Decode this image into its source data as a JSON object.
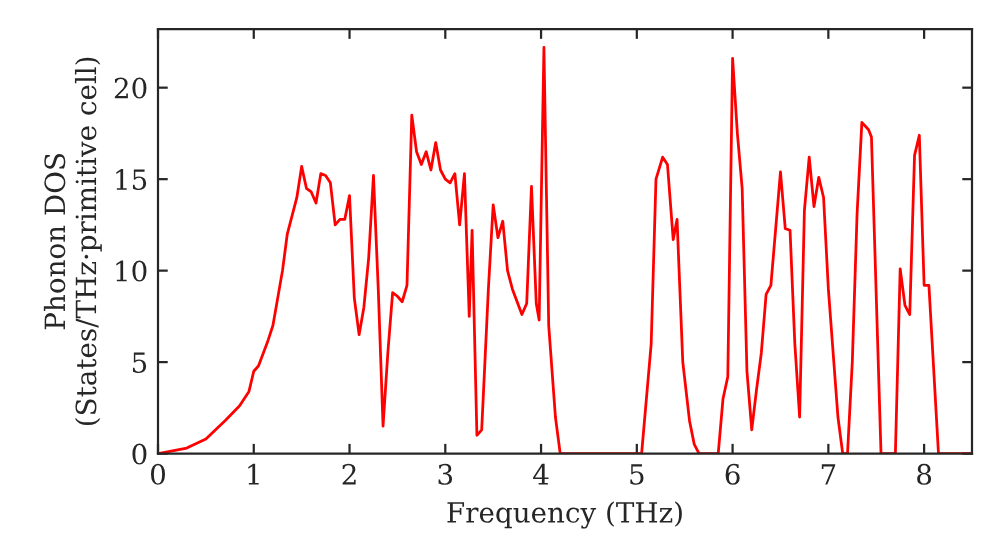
{
  "chart_data": {
    "type": "line",
    "xlabel": "Frequency (THz)",
    "ylabel": "Phonon DOS\n(States/THz·primitive cell)",
    "xlim": [
      0,
      8.5
    ],
    "ylim": [
      0,
      23.2
    ],
    "xticks": [
      0,
      1,
      2,
      3,
      4,
      5,
      6,
      7,
      8
    ],
    "yticks": [
      0,
      5,
      10,
      15,
      20
    ],
    "grid": false,
    "legend": false,
    "series": [
      {
        "color": "#ff0000",
        "x": [
          0,
          0.3,
          0.5,
          0.7,
          0.85,
          0.95,
          1.0,
          1.05,
          1.15,
          1.2,
          1.3,
          1.35,
          1.45,
          1.5,
          1.55,
          1.6,
          1.65,
          1.7,
          1.75,
          1.8,
          1.85,
          1.9,
          1.95,
          2.0,
          2.05,
          2.1,
          2.15,
          2.2,
          2.25,
          2.3,
          2.35,
          2.4,
          2.45,
          2.5,
          2.55,
          2.6,
          2.65,
          2.7,
          2.75,
          2.8,
          2.85,
          2.9,
          2.95,
          3.0,
          3.05,
          3.1,
          3.15,
          3.2,
          3.25,
          3.28,
          3.33,
          3.38,
          3.45,
          3.5,
          3.55,
          3.6,
          3.65,
          3.7,
          3.8,
          3.85,
          3.9,
          3.95,
          3.98,
          4.03,
          4.08,
          4.15,
          4.2,
          5.05,
          5.15,
          5.2,
          5.27,
          5.32,
          5.38,
          5.42,
          5.48,
          5.55,
          5.6,
          5.65,
          5.85,
          5.9,
          5.95,
          6.0,
          6.05,
          6.1,
          6.15,
          6.2,
          6.25,
          6.3,
          6.35,
          6.4,
          6.45,
          6.5,
          6.55,
          6.6,
          6.65,
          6.7,
          6.75,
          6.8,
          6.85,
          6.9,
          6.95,
          7.0,
          7.1,
          7.15,
          7.2,
          7.25,
          7.3,
          7.35,
          7.42,
          7.45,
          7.55,
          7.7,
          7.75,
          7.8,
          7.85,
          7.9,
          7.95,
          8.0,
          8.05,
          8.15,
          8.5
        ],
        "values": [
          0,
          0.3,
          0.8,
          1.8,
          2.6,
          3.4,
          4.5,
          4.8,
          6.2,
          7,
          10,
          12,
          14,
          15.7,
          14.5,
          14.3,
          13.7,
          15.3,
          15.2,
          14.8,
          12.5,
          12.8,
          12.8,
          14.1,
          8.5,
          6.5,
          8,
          10.7,
          15.2,
          9,
          1.5,
          5.5,
          8.8,
          8.6,
          8.3,
          9.2,
          18.5,
          16.5,
          15.8,
          16.5,
          15.5,
          17,
          15.5,
          15,
          14.8,
          15.3,
          12.5,
          15.3,
          7.5,
          12.2,
          1,
          1.3,
          9,
          13.6,
          11.8,
          12.7,
          10,
          9,
          7.6,
          8.2,
          14.6,
          8.2,
          7.3,
          22.2,
          7,
          2,
          0,
          0,
          6,
          15,
          16.2,
          15.8,
          11.7,
          12.8,
          5,
          1.8,
          0.5,
          0,
          0,
          3,
          4.2,
          21.6,
          17.5,
          14.5,
          4.5,
          1.3,
          3.5,
          5.5,
          8.7,
          9.2,
          12.3,
          15.4,
          12.3,
          12.2,
          6,
          2,
          13.3,
          16.2,
          13.5,
          15.1,
          14,
          9,
          2,
          0,
          0,
          5,
          13.1,
          18.1,
          17.7,
          17.3,
          0,
          0,
          10.1,
          8.1,
          7.6,
          16.3,
          17.4,
          9.2,
          9.2,
          0,
          0
        ]
      }
    ]
  }
}
